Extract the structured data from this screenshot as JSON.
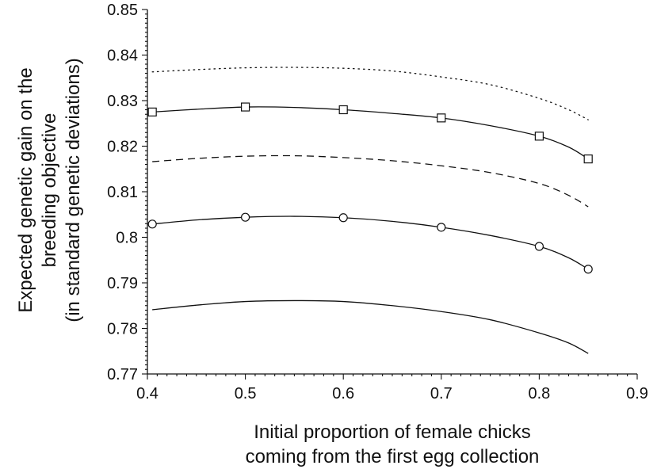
{
  "chart_data": {
    "type": "line",
    "title": "",
    "xlabel": [
      "Initial proportion of female chicks",
      "coming from the first egg collection"
    ],
    "ylabel": [
      "Expected genetic gain on the",
      "breeding objective",
      "(in standard genetic deviations)"
    ],
    "xlim": [
      0.4,
      0.9
    ],
    "ylim": [
      0.77,
      0.85
    ],
    "x_ticks": [
      "0.4",
      "0.5",
      "0.6",
      "0.7",
      "0.8",
      "0.9"
    ],
    "y_ticks": [
      "0.77",
      "0.78",
      "0.79",
      "0.8",
      "0.81",
      "0.82",
      "0.83",
      "0.84",
      "0.85"
    ],
    "grid": false,
    "legend": "none",
    "series": [
      {
        "style": "dotted",
        "marker": "none",
        "x": [
          0.405,
          0.45,
          0.5,
          0.55,
          0.6,
          0.65,
          0.7,
          0.75,
          0.8,
          0.83,
          0.85
        ],
        "y": [
          0.8363,
          0.8368,
          0.8372,
          0.8373,
          0.8371,
          0.8365,
          0.8352,
          0.8335,
          0.8305,
          0.828,
          0.8258
        ]
      },
      {
        "style": "solid",
        "marker": "square",
        "x": [
          0.405,
          0.45,
          0.5,
          0.55,
          0.6,
          0.65,
          0.7,
          0.75,
          0.8,
          0.83,
          0.85
        ],
        "y": [
          0.8275,
          0.8281,
          0.8286,
          0.8285,
          0.828,
          0.8272,
          0.8262,
          0.8245,
          0.8222,
          0.8198,
          0.8172
        ],
        "marker_x": [
          0.405,
          0.5,
          0.6,
          0.7,
          0.8,
          0.85
        ],
        "marker_y": [
          0.8275,
          0.8286,
          0.828,
          0.8262,
          0.8222,
          0.8172
        ]
      },
      {
        "style": "dashed",
        "marker": "none",
        "x": [
          0.405,
          0.45,
          0.5,
          0.55,
          0.6,
          0.65,
          0.7,
          0.75,
          0.8,
          0.83,
          0.85
        ],
        "y": [
          0.8166,
          0.8173,
          0.8178,
          0.8179,
          0.8175,
          0.8168,
          0.8157,
          0.8142,
          0.8118,
          0.8092,
          0.8067
        ]
      },
      {
        "style": "solid",
        "marker": "circle",
        "x": [
          0.405,
          0.45,
          0.5,
          0.55,
          0.6,
          0.65,
          0.7,
          0.75,
          0.8,
          0.83,
          0.85
        ],
        "y": [
          0.8029,
          0.8038,
          0.8044,
          0.8046,
          0.8043,
          0.8035,
          0.8022,
          0.8004,
          0.798,
          0.7955,
          0.793
        ],
        "marker_x": [
          0.405,
          0.5,
          0.6,
          0.7,
          0.8,
          0.85
        ],
        "marker_y": [
          0.8029,
          0.8044,
          0.8043,
          0.8022,
          0.798,
          0.793
        ]
      },
      {
        "style": "solid",
        "marker": "none",
        "x": [
          0.405,
          0.45,
          0.5,
          0.55,
          0.6,
          0.65,
          0.7,
          0.75,
          0.8,
          0.83,
          0.85
        ],
        "y": [
          0.7841,
          0.7851,
          0.7859,
          0.7861,
          0.7859,
          0.785,
          0.7837,
          0.7819,
          0.779,
          0.7768,
          0.7745
        ]
      }
    ]
  }
}
